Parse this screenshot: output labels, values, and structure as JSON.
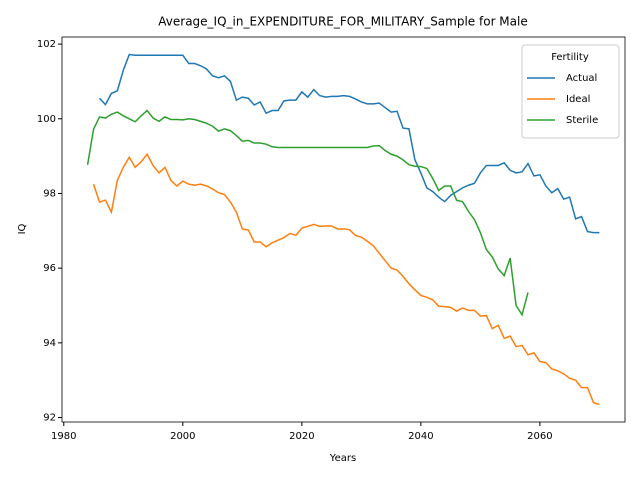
{
  "chart_data": {
    "type": "line",
    "title": "Average_IQ_in_EXPENDITURE_FOR_MILITARY_Sample for Male",
    "x_label": "Years",
    "y_label": "IQ",
    "legend_title": "Fertility",
    "legend_position": "upper right",
    "xlim": [
      1979.7,
      2074.3
    ],
    "ylim": [
      91.88,
      102.19
    ],
    "xticks": [
      1980,
      2000,
      2020,
      2040,
      2060
    ],
    "yticks": [
      92,
      94,
      96,
      98,
      100,
      102
    ],
    "x": [
      1984,
      1985,
      1986,
      1987,
      1988,
      1989,
      1990,
      1991,
      1992,
      1993,
      1994,
      1995,
      1996,
      1997,
      1998,
      1999,
      2000,
      2001,
      2002,
      2003,
      2004,
      2005,
      2006,
      2007,
      2008,
      2009,
      2010,
      2011,
      2012,
      2013,
      2014,
      2015,
      2016,
      2017,
      2018,
      2019,
      2020,
      2021,
      2022,
      2023,
      2024,
      2025,
      2026,
      2027,
      2028,
      2029,
      2030,
      2031,
      2032,
      2033,
      2034,
      2035,
      2036,
      2037,
      2038,
      2039,
      2040,
      2041,
      2042,
      2043,
      2044,
      2045,
      2046,
      2047,
      2048,
      2049,
      2050,
      2051,
      2052,
      2053,
      2054,
      2055,
      2056,
      2057,
      2058,
      2059,
      2060,
      2061,
      2062,
      2063,
      2064,
      2065,
      2066,
      2067,
      2068,
      2069,
      2070
    ],
    "series": [
      {
        "name": "Actual",
        "color": "#1f77b4",
        "values": [
          null,
          null,
          100.55,
          100.38,
          100.68,
          100.75,
          101.3,
          101.72,
          101.7,
          101.7,
          101.7,
          101.7,
          101.7,
          101.7,
          101.7,
          101.7,
          101.7,
          101.48,
          101.48,
          101.42,
          101.33,
          101.15,
          101.1,
          101.15,
          101.0,
          100.5,
          100.58,
          100.55,
          100.37,
          100.45,
          100.15,
          100.22,
          100.22,
          100.48,
          100.5,
          100.5,
          100.72,
          100.58,
          100.78,
          100.62,
          100.58,
          100.6,
          100.6,
          100.62,
          100.6,
          100.53,
          100.45,
          100.4,
          100.4,
          100.42,
          100.3,
          100.18,
          100.2,
          99.75,
          99.73,
          98.9,
          98.55,
          98.15,
          98.05,
          97.9,
          97.78,
          97.95,
          98.05,
          98.15,
          98.22,
          98.27,
          98.55,
          98.75,
          98.75,
          98.75,
          98.82,
          98.62,
          98.55,
          98.58,
          98.8,
          98.47,
          98.5,
          98.2,
          98.02,
          98.13,
          97.85,
          97.9,
          97.32,
          97.38,
          96.98,
          96.95,
          96.95
        ]
      },
      {
        "name": "Ideal",
        "color": "#ff7f0e",
        "values": [
          null,
          98.25,
          97.77,
          97.82,
          97.5,
          98.35,
          98.7,
          98.97,
          98.7,
          98.85,
          99.05,
          98.75,
          98.55,
          98.7,
          98.35,
          98.2,
          98.33,
          98.25,
          98.22,
          98.25,
          98.2,
          98.12,
          98.02,
          97.97,
          97.77,
          97.5,
          97.05,
          97.02,
          96.7,
          96.7,
          96.57,
          96.68,
          96.75,
          96.82,
          96.93,
          96.88,
          97.07,
          97.12,
          97.17,
          97.12,
          97.13,
          97.13,
          97.05,
          97.05,
          97.03,
          96.88,
          96.83,
          96.72,
          96.6,
          96.4,
          96.2,
          96.0,
          95.95,
          95.78,
          95.58,
          95.42,
          95.27,
          95.22,
          95.15,
          94.98,
          94.97,
          94.95,
          94.85,
          94.93,
          94.87,
          94.87,
          94.72,
          94.73,
          94.38,
          94.47,
          94.12,
          94.18,
          93.9,
          93.93,
          93.68,
          93.73,
          93.5,
          93.47,
          93.3,
          93.25,
          93.17,
          93.05,
          93.0,
          92.8,
          92.8,
          92.4,
          92.35
        ]
      },
      {
        "name": "Sterile",
        "color": "#2ca02c",
        "values": [
          98.77,
          99.72,
          100.05,
          100.02,
          100.12,
          100.18,
          100.08,
          100.0,
          99.92,
          100.08,
          100.22,
          100.02,
          99.93,
          100.05,
          99.98,
          99.98,
          99.97,
          100.0,
          99.98,
          99.93,
          99.88,
          99.8,
          99.67,
          99.73,
          99.68,
          99.55,
          99.4,
          99.42,
          99.35,
          99.35,
          99.32,
          99.25,
          99.23,
          99.23,
          99.23,
          99.23,
          99.23,
          99.23,
          99.23,
          99.23,
          99.23,
          99.23,
          99.23,
          99.23,
          99.23,
          99.23,
          99.23,
          99.23,
          99.27,
          99.28,
          99.15,
          99.05,
          99.0,
          98.9,
          98.77,
          98.73,
          98.72,
          98.67,
          98.4,
          98.08,
          98.2,
          98.2,
          97.82,
          97.78,
          97.52,
          97.3,
          96.95,
          96.5,
          96.3,
          95.98,
          95.8,
          96.27,
          95.0,
          94.75,
          95.35,
          null,
          null,
          null,
          null,
          null,
          null,
          null,
          null,
          null,
          null,
          null,
          null
        ]
      }
    ]
  }
}
